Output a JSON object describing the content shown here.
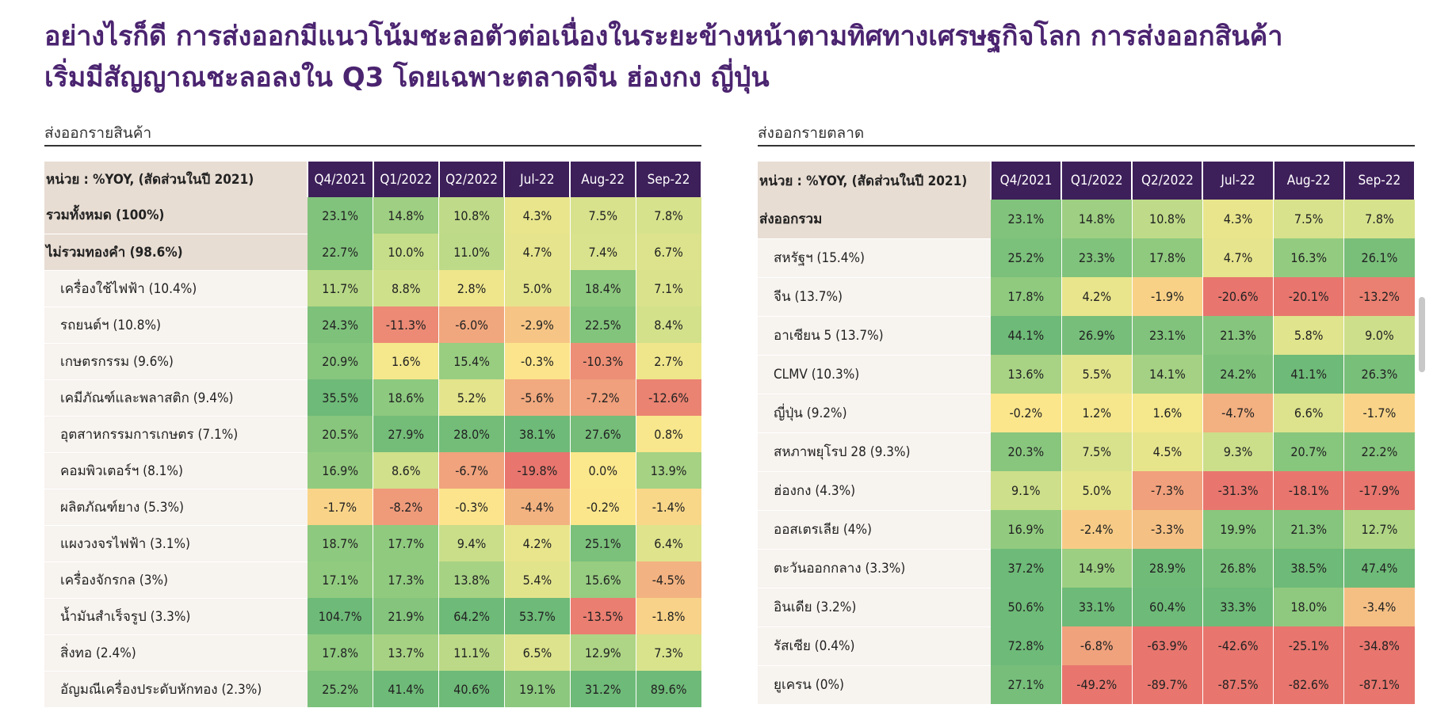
{
  "headline": {
    "line1": "อย่างไรก็ดี การส่งออกมีแนวโน้มชะลอตัวต่อเนื่องในระยะข้างหน้าตามทิศทางเศรษฐกิจโลก การส่งออกสินค้า",
    "line2": "เริ่มมีสัญญาณชะลอลงใน Q3 โดยเฉพาะตลาดจีน ฮ่องกง ญี่ปุ่น"
  },
  "product_table": {
    "section_title": "ส่งออกรายสินค้า",
    "unit_label": "หน่วย : %YOY, (สัดส่วนในปี 2021)",
    "columns": [
      "Q4/2021",
      "Q1/2022",
      "Q2/2022",
      "Jul-22",
      "Aug-22",
      "Sep-22"
    ],
    "rows": [
      {
        "label": "รวมทั้งหมด (100%)",
        "total": true,
        "values": [
          23.1,
          14.8,
          10.8,
          4.3,
          7.5,
          7.8
        ]
      },
      {
        "label": "ไม่รวมทองคำ (98.6%)",
        "total": true,
        "values": [
          22.7,
          10.0,
          11.0,
          4.7,
          7.4,
          6.7
        ]
      },
      {
        "label": "เครื่องใช้ไฟฟ้า (10.4%)",
        "values": [
          11.7,
          8.8,
          2.8,
          5.0,
          18.4,
          7.1
        ]
      },
      {
        "label": "รถยนต์ฯ (10.8%)",
        "values": [
          24.3,
          -11.3,
          -6.0,
          -2.9,
          22.5,
          8.4
        ]
      },
      {
        "label": "เกษตรกรรม (9.6%)",
        "values": [
          20.9,
          1.6,
          15.4,
          -0.3,
          -10.3,
          2.7
        ]
      },
      {
        "label": "เคมีภัณฑ์และพลาสติก (9.4%)",
        "values": [
          35.5,
          18.6,
          5.2,
          -5.6,
          -7.2,
          -12.6
        ]
      },
      {
        "label": "อุตสาหกรรมการเกษตร (7.1%)",
        "values": [
          20.5,
          27.9,
          28.0,
          38.1,
          27.6,
          0.8
        ]
      },
      {
        "label": "คอมพิวเตอร์ฯ (8.1%)",
        "values": [
          16.9,
          8.6,
          -6.7,
          -19.8,
          0.0,
          13.9
        ]
      },
      {
        "label": "ผลิตภัณฑ์ยาง (5.3%)",
        "values": [
          -1.7,
          -8.2,
          -0.3,
          -4.4,
          -0.2,
          -1.4
        ]
      },
      {
        "label": "แผงวงจรไฟฟ้า (3.1%)",
        "values": [
          18.7,
          17.7,
          9.4,
          4.2,
          25.1,
          6.4
        ]
      },
      {
        "label": "เครื่องจักรกล (3%)",
        "values": [
          17.1,
          17.3,
          13.8,
          5.4,
          15.6,
          -4.5
        ]
      },
      {
        "label": "น้ำมันสำเร็จรูป (3.3%)",
        "values": [
          104.7,
          21.9,
          64.2,
          53.7,
          -13.5,
          -1.8
        ]
      },
      {
        "label": "สิ่งทอ (2.4%)",
        "values": [
          17.8,
          13.7,
          11.1,
          6.5,
          12.9,
          7.3
        ]
      },
      {
        "label": "อัญมณีเครื่องประดับหักทอง (2.3%)",
        "values": [
          25.2,
          41.4,
          40.6,
          19.1,
          31.2,
          89.6
        ]
      }
    ]
  },
  "market_table": {
    "section_title": "ส่งออกรายตลาด",
    "unit_label": "หน่วย : %YOY, (สัดส่วนในปี 2021)",
    "columns": [
      "Q4/2021",
      "Q1/2022",
      "Q2/2022",
      "Jul-22",
      "Aug-22",
      "Sep-22"
    ],
    "rows": [
      {
        "label": "ส่งออกรวม",
        "total": true,
        "values": [
          23.1,
          14.8,
          10.8,
          4.3,
          7.5,
          7.8
        ]
      },
      {
        "label": "สหรัฐฯ (15.4%)",
        "values": [
          25.2,
          23.3,
          17.8,
          4.7,
          16.3,
          26.1
        ]
      },
      {
        "label": "จีน (13.7%)",
        "values": [
          17.8,
          4.2,
          -1.9,
          -20.6,
          -20.1,
          -13.2
        ]
      },
      {
        "label": "อาเซียน 5 (13.7%)",
        "values": [
          44.1,
          26.9,
          23.1,
          21.3,
          5.8,
          9.0
        ]
      },
      {
        "label": "CLMV (10.3%)",
        "values": [
          13.6,
          5.5,
          14.1,
          24.2,
          41.1,
          26.3
        ]
      },
      {
        "label": "ญี่ปุ่น (9.2%)",
        "values": [
          -0.2,
          1.2,
          1.6,
          -4.7,
          6.6,
          -1.7
        ]
      },
      {
        "label": "สหภาพยุโรป 28 (9.3%)",
        "values": [
          20.3,
          7.5,
          4.5,
          9.3,
          20.7,
          22.2
        ]
      },
      {
        "label": "ฮ่องกง (4.3%)",
        "values": [
          9.1,
          5.0,
          -7.3,
          -31.3,
          -18.1,
          -17.9
        ]
      },
      {
        "label": "ออสเตรเลีย (4%)",
        "values": [
          16.9,
          -2.4,
          -3.3,
          19.9,
          21.3,
          12.7
        ]
      },
      {
        "label": "ตะวันออกกลาง (3.3%)",
        "values": [
          37.2,
          14.9,
          28.9,
          26.8,
          38.5,
          47.4
        ]
      },
      {
        "label": "อินเดีย (3.2%)",
        "values": [
          50.6,
          33.1,
          60.4,
          33.3,
          18.0,
          -3.4
        ]
      },
      {
        "label": "รัสเซีย (0.4%)",
        "values": [
          72.8,
          -6.8,
          -63.9,
          -42.6,
          -25.1,
          -34.8
        ]
      },
      {
        "label": "ยูเครน (0%)",
        "values": [
          27.1,
          -49.2,
          -89.7,
          -87.5,
          -82.6,
          -87.1
        ]
      }
    ]
  }
}
